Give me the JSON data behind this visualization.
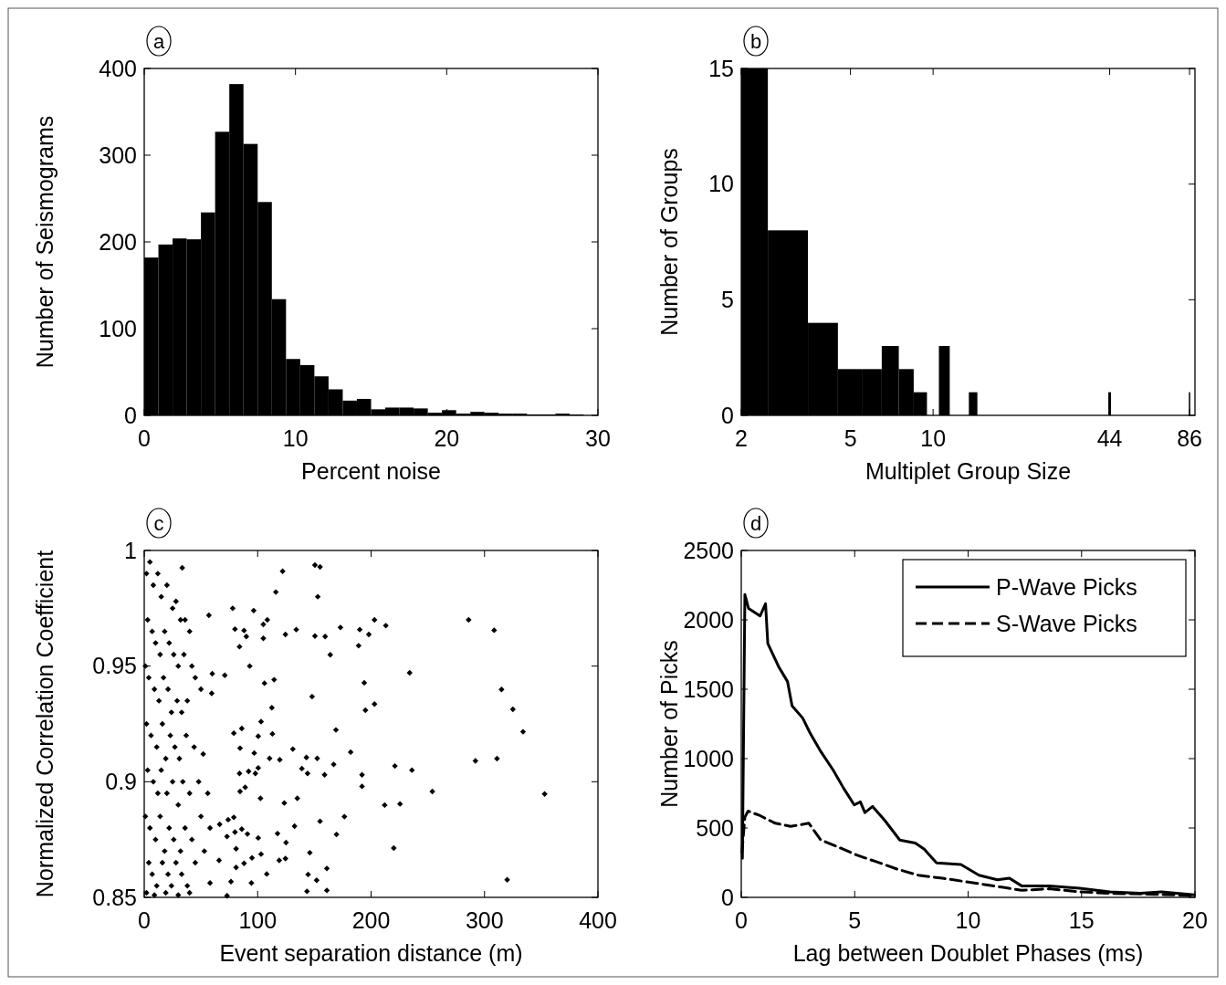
{
  "chart_data": [
    {
      "type": "histogram",
      "annotations": [
        "a"
      ],
      "xlabel": "Percent noise",
      "ylabel": "Number of Seismograms",
      "xlim": [
        0,
        30
      ],
      "ylim": [
        0,
        400
      ],
      "xticks": [
        0,
        10,
        20,
        30
      ],
      "yticks": [
        0,
        100,
        200,
        300,
        400
      ],
      "color": "#000000",
      "bins": [
        0,
        0.9375,
        1.875,
        2.8125,
        3.75,
        4.6875,
        5.625,
        6.5625,
        7.5,
        8.4375,
        9.375,
        10.3125,
        11.25,
        12.1875,
        13.125,
        14.0625,
        15,
        15.9375,
        16.875,
        17.8125,
        18.75,
        19.6875,
        20.625,
        21.5625,
        22.5,
        23.4375,
        24.375,
        25.3125,
        26.25,
        27.1875,
        28.125,
        29.0625,
        30
      ],
      "values": [
        182,
        197,
        204,
        203,
        234,
        327,
        382,
        313,
        246,
        134,
        65,
        58,
        45,
        30,
        17,
        19,
        7,
        9,
        9,
        8,
        3,
        6,
        2,
        4,
        3,
        2,
        2,
        1,
        1,
        2,
        1,
        0
      ]
    },
    {
      "type": "histogram",
      "annotations": [
        "b"
      ],
      "xlabel": "Multiplet Group Size",
      "ylabel": "Number of Groups",
      "log": "x",
      "xlim": [
        2,
        90
      ],
      "ylim": [
        0,
        15
      ],
      "xticks": [
        2,
        5,
        10,
        44,
        86
      ],
      "yticks": [
        0,
        5,
        10,
        15
      ],
      "color": "#000000",
      "bins": [
        2,
        2.5,
        3.5,
        4.5,
        5.5,
        6.5,
        7.5,
        8.5,
        9.5,
        10.5,
        11.5,
        13.5,
        14.5,
        43.5,
        44.5,
        85.5,
        86.5
      ],
      "values": [
        15,
        8,
        4,
        2,
        2,
        3,
        2,
        1,
        0,
        3,
        0,
        1,
        0,
        1,
        0,
        1
      ]
    },
    {
      "type": "scatter",
      "annotations": [
        "c"
      ],
      "xlabel": "Event separation distance (m)",
      "ylabel": "Normalized Correlation Coefficient",
      "xlim": [
        0,
        400
      ],
      "ylim": [
        0.85,
        1
      ],
      "xticks": [
        0,
        100,
        200,
        300,
        400
      ],
      "yticks": [
        0.85,
        0.9,
        0.95,
        1
      ],
      "marker": "diamond",
      "color": "#000000",
      "x": [
        33.5,
        122,
        150.5,
        155,
        116,
        153,
        78,
        96.5,
        57,
        203,
        108.5,
        213,
        286,
        308.5,
        80,
        88,
        90,
        105,
        105,
        124.5,
        134,
        150.5,
        159.5,
        173,
        190,
        198,
        189,
        84,
        164,
        93,
        71,
        60,
        234,
        106,
        114.5,
        194,
        315,
        148,
        59.5,
        112.5,
        195,
        203,
        325,
        103,
        169,
        334,
        79,
        86,
        113,
        100.5,
        84.5,
        131,
        182,
        97,
        110.5,
        119.5,
        143,
        152.5,
        167,
        292,
        311,
        221,
        236,
        84,
        92,
        98,
        100.5,
        139,
        144,
        159,
        192,
        192,
        84.5,
        89,
        254,
        353,
        102.5,
        135,
        123.5,
        212,
        225.5,
        74,
        79,
        155,
        176.5,
        132.5,
        169.5,
        117.5,
        73,
        80,
        86,
        91,
        100.5,
        125,
        220,
        81,
        103,
        95,
        119,
        124.5,
        146,
        88,
        81,
        76.5,
        73,
        94.5,
        108,
        144.5,
        152,
        161,
        161,
        143.5,
        320,
        58,
        66,
        66.5,
        2,
        5,
        8,
        12,
        15,
        20,
        25,
        28,
        32,
        36,
        40,
        3,
        7,
        10,
        14,
        18,
        22,
        26,
        30,
        35,
        42,
        45,
        1,
        4,
        9,
        13,
        17,
        21,
        24,
        29,
        33,
        38,
        50,
        2,
        6,
        11,
        16,
        19,
        23,
        27,
        31,
        37,
        44,
        52,
        3,
        8,
        12,
        15,
        20,
        25,
        30,
        34,
        40,
        48,
        56,
        1,
        5,
        10,
        14,
        18,
        22,
        26,
        32,
        36,
        42,
        50,
        58,
        4,
        7,
        11,
        16,
        21,
        24,
        28,
        33,
        38,
        45,
        53,
        2,
        9,
        19,
        30,
        40
      ],
      "values": [
        0.9925,
        0.991,
        0.9937,
        0.9929,
        0.982,
        0.98,
        0.975,
        0.974,
        0.972,
        0.97,
        0.97,
        0.9675,
        0.97,
        0.9655,
        0.966,
        0.9654,
        0.9628,
        0.968,
        0.962,
        0.9637,
        0.9658,
        0.963,
        0.9628,
        0.9667,
        0.9658,
        0.9637,
        0.9588,
        0.9584,
        0.9549,
        0.95,
        0.946,
        0.9467,
        0.9471,
        0.9426,
        0.9441,
        0.9428,
        0.9399,
        0.9368,
        0.9382,
        0.932,
        0.9309,
        0.9336,
        0.9313,
        0.926,
        0.9224,
        0.9216,
        0.921,
        0.923,
        0.9207,
        0.9197,
        0.9145,
        0.9141,
        0.9128,
        0.9124,
        0.9101,
        0.9095,
        0.9105,
        0.9101,
        0.9075,
        0.909,
        0.91,
        0.9068,
        0.905,
        0.9036,
        0.9045,
        0.9036,
        0.906,
        0.9057,
        0.9036,
        0.903,
        0.903,
        0.898,
        0.8958,
        0.8976,
        0.8958,
        0.8947,
        0.8928,
        0.8928,
        0.8908,
        0.8899,
        0.8904,
        0.8836,
        0.8846,
        0.8829,
        0.8849,
        0.8808,
        0.8772,
        0.8776,
        0.8763,
        0.8782,
        0.8795,
        0.8774,
        0.8757,
        0.8737,
        0.8713,
        0.871,
        0.8687,
        0.8671,
        0.866,
        0.8668,
        0.8693,
        0.8647,
        0.8629,
        0.8568,
        0.8507,
        0.8562,
        0.8601,
        0.8599,
        0.8574,
        0.8625,
        0.853,
        0.8526,
        0.8576,
        0.8562,
        0.866,
        0.8816,
        0.99,
        0.995,
        0.985,
        0.99,
        0.98,
        0.985,
        0.975,
        0.978,
        0.97,
        0.97,
        0.965,
        0.97,
        0.965,
        0.96,
        0.955,
        0.965,
        0.96,
        0.955,
        0.95,
        0.955,
        0.95,
        0.945,
        0.95,
        0.945,
        0.94,
        0.935,
        0.945,
        0.94,
        0.93,
        0.935,
        0.93,
        0.935,
        0.94,
        0.925,
        0.92,
        0.915,
        0.925,
        0.91,
        0.92,
        0.915,
        0.91,
        0.92,
        0.915,
        0.912,
        0.905,
        0.9,
        0.895,
        0.905,
        0.895,
        0.9,
        0.89,
        0.9,
        0.895,
        0.9,
        0.895,
        0.885,
        0.88,
        0.875,
        0.885,
        0.87,
        0.88,
        0.875,
        0.87,
        0.88,
        0.875,
        0.885,
        0.88,
        0.865,
        0.86,
        0.855,
        0.865,
        0.86,
        0.855,
        0.865,
        0.86,
        0.855,
        0.865,
        0.87,
        0.852,
        0.851,
        0.852,
        0.851,
        0.852
      ]
    },
    {
      "type": "line",
      "annotations": [
        "d"
      ],
      "xlabel": "Lag between Doublet Phases (ms)",
      "ylabel": "Number of Picks",
      "xlim": [
        0,
        20
      ],
      "ylim": [
        0,
        2500
      ],
      "xticks": [
        0,
        5,
        10,
        15,
        20
      ],
      "yticks": [
        0,
        500,
        1000,
        1500,
        2000,
        2500
      ],
      "legend": "top right",
      "series": [
        {
          "name": "P-Wave Picks",
          "color": "#000000",
          "line_style": "solid",
          "x": [
            0.05,
            0.16,
            0.32,
            0.83,
            1.07,
            1.17,
            1.64,
            2.04,
            2.24,
            2.71,
            3.04,
            3.51,
            4.05,
            4.51,
            4.98,
            5.25,
            5.45,
            5.79,
            6.32,
            6.99,
            7.67,
            8.07,
            8.61,
            9.68,
            10.48,
            11.29,
            11.82,
            12.36,
            13.57,
            14.91,
            16.25,
            17.59,
            18.53,
            19.97
          ],
          "values": [
            281,
            2182,
            2083,
            2028,
            2116,
            1830,
            1665,
            1555,
            1380,
            1292,
            1182,
            1050,
            918,
            787,
            666,
            688,
            611,
            655,
            556,
            413,
            391,
            347,
            248,
            237,
            160,
            127,
            138,
            83,
            83,
            66,
            40,
            29,
            40,
            18
          ]
        },
        {
          "name": "S-Wave Picks",
          "color": "#000000",
          "line_style": "dashed",
          "x": [
            0.03,
            0.16,
            0.3,
            0.83,
            1.5,
            2.17,
            2.98,
            3.51,
            4.18,
            5.12,
            5.92,
            6.86,
            7.8,
            8.87,
            10.21,
            11.55,
            12.36,
            13.57,
            14.91,
            16.25,
            18.26,
            19.97
          ],
          "values": [
            325,
            578,
            622,
            589,
            534,
            512,
            534,
            413,
            369,
            303,
            259,
            204,
            160,
            138,
            105,
            72,
            51,
            62,
            40,
            29,
            22,
            13
          ]
        }
      ]
    }
  ]
}
